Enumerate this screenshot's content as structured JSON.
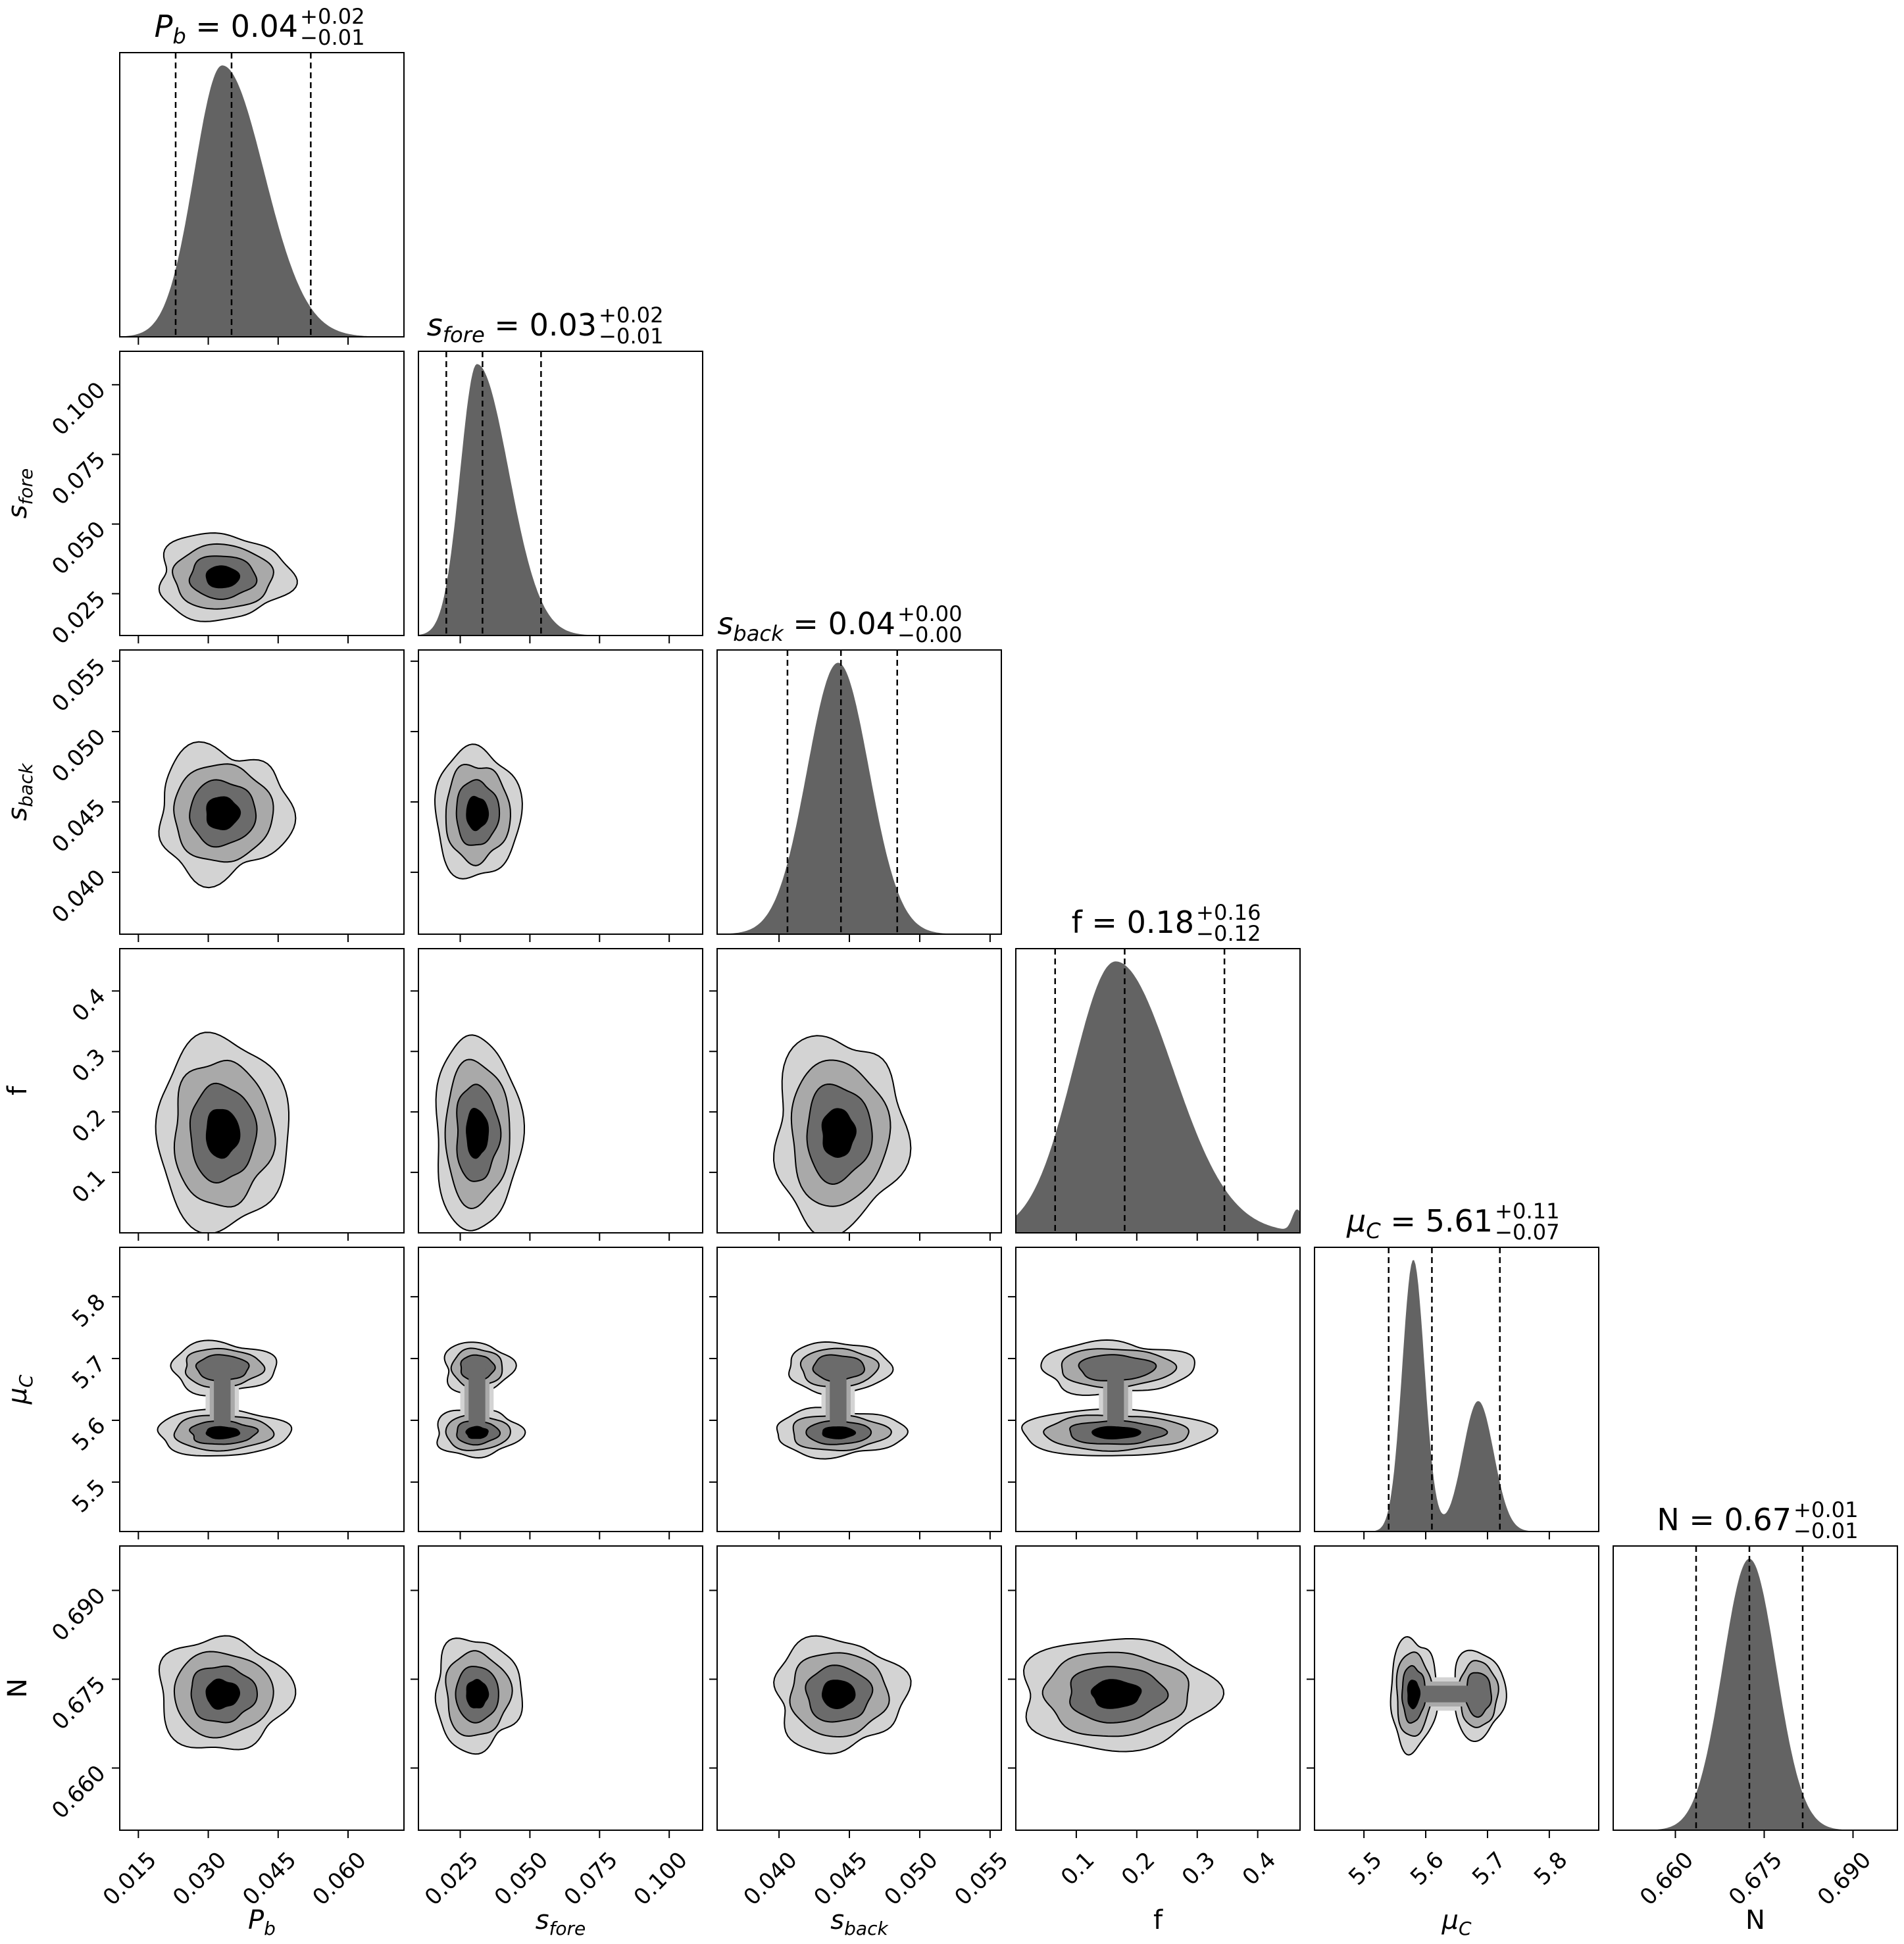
{
  "chart_data": {
    "type": "corner",
    "parameters": [
      {
        "key": "Pb",
        "symbol": "P",
        "sub": "b",
        "italic": true,
        "label": "P_b",
        "median": 0.035,
        "lo": 0.023,
        "hi": 0.052,
        "range": [
          0.011,
          0.072
        ],
        "ticks": [
          0.015,
          0.03,
          0.045,
          0.06
        ],
        "tick_labels": [
          "0.015",
          "0.030",
          "0.045",
          "0.060"
        ],
        "title": {
          "value": "0.04",
          "plus": "+0.02",
          "minus": "−0.01"
        },
        "hist": {
          "modes": [
            {
              "mu": 0.033,
              "sigma": 0.006,
              "w": 1.0
            }
          ],
          "skew": 0.5
        }
      },
      {
        "key": "sfore",
        "symbol": "s",
        "sub": "fore",
        "italic": true,
        "label": "s_fore",
        "median": 0.033,
        "lo": 0.02,
        "hi": 0.054,
        "range": [
          0.01,
          0.112
        ],
        "ticks": [
          0.025,
          0.05,
          0.075,
          0.1
        ],
        "tick_labels": [
          "0.025",
          "0.050",
          "0.075",
          "0.100"
        ],
        "title": {
          "value": "0.03",
          "plus": "+0.02",
          "minus": "−0.01"
        },
        "hist": {
          "modes": [
            {
              "mu": 0.031,
              "sigma": 0.006,
              "w": 1.0
            }
          ],
          "skew": 0.9
        }
      },
      {
        "key": "sback",
        "symbol": "s",
        "sub": "back",
        "italic": true,
        "label": "s_back",
        "median": 0.0444,
        "lo": 0.0406,
        "hi": 0.0484,
        "range": [
          0.0356,
          0.0558
        ],
        "ticks": [
          0.04,
          0.045,
          0.05,
          0.055
        ],
        "tick_labels": [
          "0.040",
          "0.045",
          "0.050",
          "0.055"
        ],
        "title": {
          "value": "0.04",
          "plus": "+0.00",
          "minus": "−0.00"
        },
        "hist": {
          "modes": [
            {
              "mu": 0.0442,
              "sigma": 0.0022,
              "w": 1.0
            }
          ],
          "skew": 0.0
        }
      },
      {
        "key": "f",
        "symbol": "f",
        "sub": "",
        "italic": false,
        "label": "f",
        "median": 0.18,
        "lo": 0.065,
        "hi": 0.345,
        "range": [
          0.0,
          0.47
        ],
        "ticks": [
          0.1,
          0.2,
          0.3,
          0.4
        ],
        "tick_labels": [
          "0.1",
          "0.2",
          "0.3",
          "0.4"
        ],
        "title": {
          "value": "0.18",
          "plus": "+0.16",
          "minus": "−0.12"
        },
        "hist": {
          "modes": [
            {
              "mu": 0.165,
              "sigma": 0.07,
              "w": 1.0
            },
            {
              "mu": 0.465,
              "sigma": 0.008,
              "w": 0.08
            }
          ],
          "skew": 0.35
        }
      },
      {
        "key": "muC",
        "symbol": "μ",
        "sub": "C",
        "italic": true,
        "label": "μ_C",
        "median": 5.61,
        "lo": 5.54,
        "hi": 5.72,
        "range": [
          5.42,
          5.88
        ],
        "ticks": [
          5.5,
          5.6,
          5.7,
          5.8
        ],
        "tick_labels": [
          "5.5",
          "5.6",
          "5.7",
          "5.8"
        ],
        "title": {
          "value": "5.61",
          "plus": "+0.11",
          "minus": "−0.07"
        },
        "hist": {
          "modes": [
            {
              "mu": 5.58,
              "sigma": 0.018,
              "w": 1.0
            },
            {
              "mu": 5.685,
              "sigma": 0.025,
              "w": 0.48
            }
          ],
          "skew": 0.0
        }
      },
      {
        "key": "N",
        "symbol": "N",
        "sub": "",
        "italic": false,
        "label": "N",
        "median": 0.6725,
        "lo": 0.6635,
        "hi": 0.6815,
        "range": [
          0.6495,
          0.6975
        ],
        "ticks": [
          0.66,
          0.675,
          0.69
        ],
        "tick_labels": [
          "0.660",
          "0.675",
          "0.690"
        ],
        "title": {
          "value": "0.67",
          "plus": "+0.01",
          "minus": "−0.01"
        },
        "hist": {
          "modes": [
            {
              "mu": 0.6725,
              "sigma": 0.0045,
              "w": 1.0
            }
          ],
          "skew": 0.0
        }
      }
    ],
    "contour_levels": 4,
    "contour_fills": [
      "#d3d3d3",
      "#a9a9a9",
      "#6b6b6b",
      "#000000"
    ],
    "hist_fill": "#636363",
    "quantile_line_style": "dashed"
  }
}
